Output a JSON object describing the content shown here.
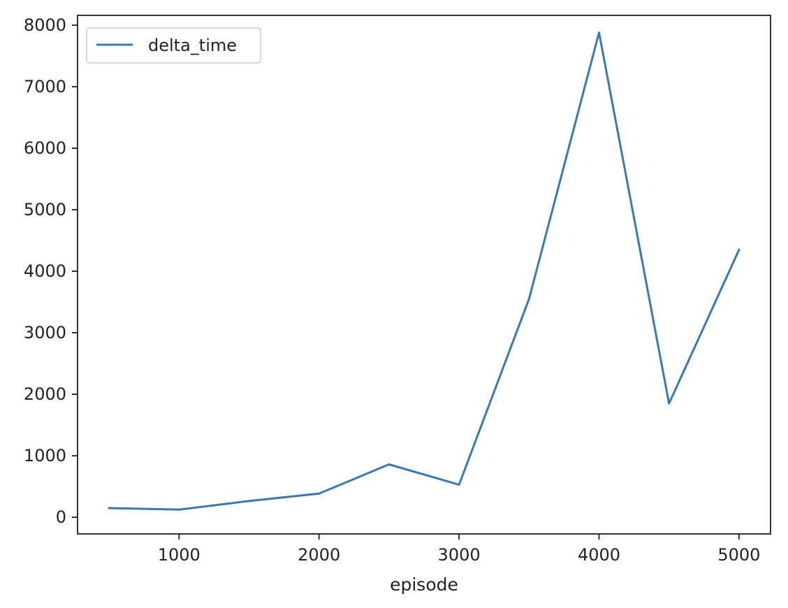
{
  "chart_data": {
    "type": "line",
    "xlabel": "episode",
    "ylabel": "",
    "x": [
      500,
      1000,
      1500,
      2000,
      2500,
      3000,
      3500,
      4000,
      4500,
      5000
    ],
    "series": [
      {
        "name": "delta_time",
        "values": [
          150,
          125,
          265,
          385,
          860,
          530,
          3550,
          7880,
          1850,
          4350
        ],
        "color": "#3a78b5"
      }
    ],
    "xlim": [
      275,
      5225
    ],
    "ylim": [
      -270,
      8160
    ],
    "x_ticks": [
      1000,
      2000,
      3000,
      4000,
      5000
    ],
    "x_tick_labels": [
      "1000",
      "2000",
      "3000",
      "4000",
      "5000"
    ],
    "y_ticks": [
      0,
      1000,
      2000,
      3000,
      4000,
      5000,
      6000,
      7000,
      8000
    ],
    "y_tick_labels": [
      "0",
      "1000",
      "2000",
      "3000",
      "4000",
      "5000",
      "6000",
      "7000",
      "8000"
    ],
    "grid": false,
    "legend_position": "top-left"
  }
}
